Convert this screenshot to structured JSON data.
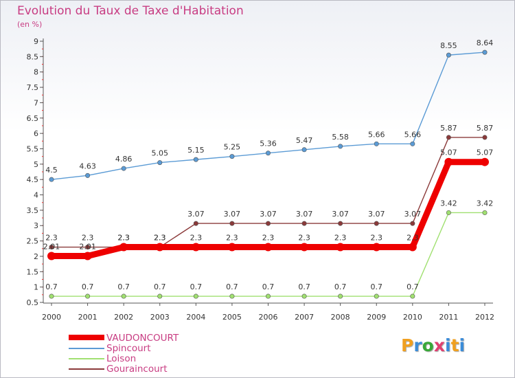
{
  "header": {
    "title": "Evolution du Taux de Taxe d'Habitation",
    "subtitle": "(en %)"
  },
  "logo": {
    "letters": [
      "P",
      "r",
      "o",
      "x",
      "i",
      "t",
      "i"
    ],
    "colors": [
      "#f0a020",
      "#3c8cd8",
      "#38a838",
      "#e04070",
      "#3c8cd8",
      "#f0a020",
      "#3c8cd8"
    ]
  },
  "chart_data": {
    "type": "line",
    "title": "Evolution du Taux de Taxe d'Habitation",
    "ylabel": "(en %)",
    "xlabel": "",
    "x": [
      "2000",
      "2001",
      "2002",
      "2003",
      "2004",
      "2005",
      "2006",
      "2007",
      "2008",
      "2009",
      "2010",
      "2011",
      "2012"
    ],
    "ylim": [
      0.5,
      9
    ],
    "yticks": [
      "0.5",
      "1",
      "1.5",
      "2",
      "2.5",
      "3",
      "3.5",
      "4",
      "4.5",
      "5",
      "5.5",
      "6",
      "6.5",
      "7",
      "7.5",
      "8",
      "8.5",
      "9"
    ],
    "legend": "bottom-left",
    "series": [
      {
        "name": "VAUDONCOURT",
        "color": "#ee0000",
        "values": [
          2.01,
          2.01,
          2.3,
          2.3,
          2.3,
          2.3,
          2.3,
          2.3,
          2.3,
          2.3,
          2.3,
          5.07,
          5.07
        ],
        "labels": [
          "2.01",
          "2.01",
          "2.3",
          "2.3",
          "2.3",
          "2.3",
          "2.3",
          "2.3",
          "2.3",
          "2.3",
          "2.3",
          "5.07",
          "5.07"
        ]
      },
      {
        "name": "Spincourt",
        "color": "#5b9bd5",
        "values": [
          4.5,
          4.63,
          4.86,
          5.05,
          5.15,
          5.25,
          5.36,
          5.47,
          5.58,
          5.66,
          5.66,
          8.55,
          8.64
        ],
        "labels": [
          "4.5",
          "4.63",
          "4.86",
          "5.05",
          "5.15",
          "5.25",
          "5.36",
          "5.47",
          "5.58",
          "5.66",
          "5.66",
          "8.55",
          "8.64"
        ]
      },
      {
        "name": "Loison",
        "color": "#a0e070",
        "values": [
          0.7,
          0.7,
          0.7,
          0.7,
          0.7,
          0.7,
          0.7,
          0.7,
          0.7,
          0.7,
          0.7,
          3.42,
          3.42
        ],
        "labels": [
          "0.7",
          "0.7",
          "0.7",
          "0.7",
          "0.7",
          "0.7",
          "0.7",
          "0.7",
          "0.7",
          "0.7",
          "0.7",
          "3.42",
          "3.42"
        ]
      },
      {
        "name": "Gouraincourt",
        "color": "#8b3a3a",
        "values": [
          2.3,
          2.3,
          2.3,
          2.3,
          3.07,
          3.07,
          3.07,
          3.07,
          3.07,
          3.07,
          3.07,
          5.87,
          5.87
        ],
        "labels": [
          "2.3",
          "2.3",
          "2.3",
          "2.3",
          "3.07",
          "3.07",
          "3.07",
          "3.07",
          "3.07",
          "3.07",
          "3.07",
          "5.87",
          "5.87"
        ]
      }
    ]
  }
}
